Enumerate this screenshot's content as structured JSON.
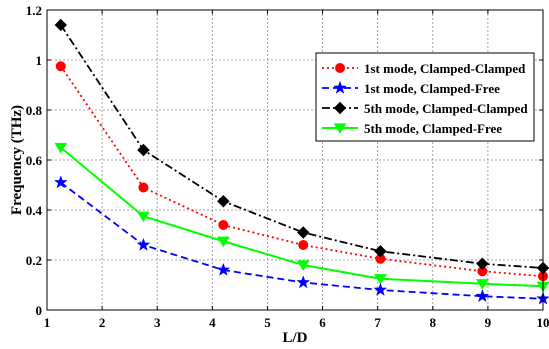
{
  "chart_data": {
    "type": "line",
    "xlabel": "L/D",
    "ylabel": "Frequency (THz)",
    "xlim": [
      1,
      10
    ],
    "ylim": [
      0,
      1.2
    ],
    "xticks": [
      "1",
      "2",
      "3",
      "4",
      "5",
      "6",
      "7",
      "8",
      "9",
      "10"
    ],
    "yticks": [
      "0",
      "0.2",
      "0.4",
      "0.6",
      "0.8",
      "1",
      "1.2"
    ],
    "grid": true,
    "legend_position": "top-right",
    "x": [
      1.25,
      2.75,
      4.2,
      5.65,
      7.05,
      8.9,
      10
    ],
    "series": [
      {
        "name": "1st mode, Clamped-Clamped",
        "values": [
          0.975,
          0.49,
          0.34,
          0.26,
          0.205,
          0.155,
          0.135
        ],
        "color": "#ff0000",
        "line": "dotted",
        "marker": "circle"
      },
      {
        "name": "1st mode, Clamped-Free",
        "values": [
          0.51,
          0.26,
          0.16,
          0.11,
          0.08,
          0.055,
          0.045
        ],
        "color": "#0000ff",
        "line": "dashed",
        "marker": "star"
      },
      {
        "name": "5th mode, Clamped-Clamped",
        "values": [
          1.14,
          0.64,
          0.435,
          0.31,
          0.235,
          0.185,
          0.168
        ],
        "color": "#000000",
        "line": "dashdot",
        "marker": "diamond"
      },
      {
        "name": "5th mode, Clamped-Free",
        "values": [
          0.65,
          0.375,
          0.275,
          0.18,
          0.125,
          0.105,
          0.095
        ],
        "color": "#00ff00",
        "line": "solid",
        "marker": "triangle-down"
      }
    ]
  }
}
